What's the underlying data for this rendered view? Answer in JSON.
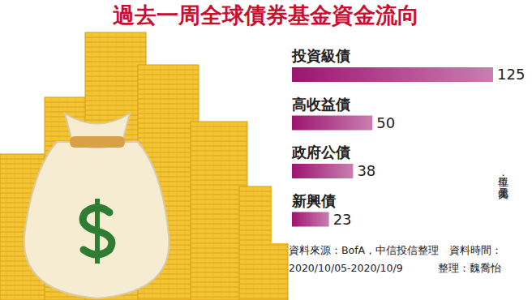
{
  "chart_data": {
    "type": "bar",
    "orientation": "horizontal",
    "title": "過去一周全球債券基金資金流向",
    "categories": [
      "投資級債",
      "高收益債",
      "政府公債",
      "新興債"
    ],
    "values": [
      125,
      50,
      38,
      23
    ],
    "color": "#9e1470",
    "xlim": [
      0,
      125
    ],
    "data_labels": true,
    "tick_labels": false,
    "grid": false,
    "annotations": [
      "單位：億美元",
      "資料來源：BofA，中信投信整理　資料時間：",
      "2020/10/05-2020/10/9",
      "整理：魏喬怡"
    ]
  }
}
